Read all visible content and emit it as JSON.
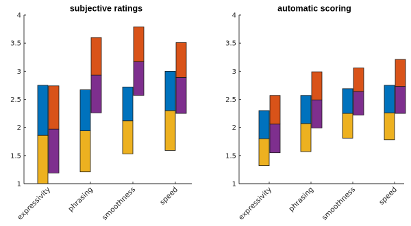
{
  "colors": {
    "blue": "#0072bd",
    "orange": "#d95319",
    "yellow": "#edb120",
    "purple": "#7e2f8e"
  },
  "chart_data": [
    {
      "type": "bar",
      "subtype": "floating-stacked",
      "title": "subjective ratings",
      "categories": [
        "expressivity",
        "phrasing",
        "smoothness",
        "speed"
      ],
      "ylim": [
        1,
        4
      ],
      "yticks": [
        "1",
        "1.5",
        "2",
        "2.5",
        "3",
        "3.5",
        "4"
      ],
      "grid": false,
      "legend": "none",
      "bars": [
        {
          "category": "expressivity",
          "bottom": 1.0,
          "mid": 1.86,
          "top": 2.75,
          "lower_color": "yellow",
          "upper_color": "blue"
        },
        {
          "category": "expressivity",
          "bottom": 1.19,
          "mid": 1.97,
          "top": 2.74,
          "lower_color": "purple",
          "upper_color": "orange"
        },
        {
          "category": "phrasing",
          "bottom": 1.21,
          "mid": 1.94,
          "top": 2.67,
          "lower_color": "yellow",
          "upper_color": "blue"
        },
        {
          "category": "phrasing",
          "bottom": 2.26,
          "mid": 2.93,
          "top": 3.6,
          "lower_color": "purple",
          "upper_color": "orange"
        },
        {
          "category": "smoothness",
          "bottom": 1.53,
          "mid": 2.12,
          "top": 2.72,
          "lower_color": "yellow",
          "upper_color": "blue"
        },
        {
          "category": "smoothness",
          "bottom": 2.57,
          "mid": 3.17,
          "top": 3.79,
          "lower_color": "purple",
          "upper_color": "orange"
        },
        {
          "category": "speed",
          "bottom": 1.59,
          "mid": 2.3,
          "top": 3.0,
          "lower_color": "yellow",
          "upper_color": "blue"
        },
        {
          "category": "speed",
          "bottom": 2.25,
          "mid": 2.89,
          "top": 3.51,
          "lower_color": "purple",
          "upper_color": "orange"
        }
      ]
    },
    {
      "type": "bar",
      "subtype": "floating-stacked",
      "title": "automatic scoring",
      "categories": [
        "expressivity",
        "phrasing",
        "smoothness",
        "speed"
      ],
      "ylim": [
        1,
        4
      ],
      "yticks": [
        "1",
        "1.5",
        "2",
        "2.5",
        "3",
        "3.5",
        "4"
      ],
      "grid": false,
      "legend": "none",
      "bars": [
        {
          "category": "expressivity",
          "bottom": 1.32,
          "mid": 1.8,
          "top": 2.3,
          "lower_color": "yellow",
          "upper_color": "blue"
        },
        {
          "category": "expressivity",
          "bottom": 1.55,
          "mid": 2.06,
          "top": 2.57,
          "lower_color": "purple",
          "upper_color": "orange"
        },
        {
          "category": "phrasing",
          "bottom": 1.57,
          "mid": 2.07,
          "top": 2.57,
          "lower_color": "yellow",
          "upper_color": "blue"
        },
        {
          "category": "phrasing",
          "bottom": 1.99,
          "mid": 2.49,
          "top": 2.99,
          "lower_color": "purple",
          "upper_color": "orange"
        },
        {
          "category": "smoothness",
          "bottom": 1.81,
          "mid": 2.25,
          "top": 2.69,
          "lower_color": "yellow",
          "upper_color": "blue"
        },
        {
          "category": "smoothness",
          "bottom": 2.22,
          "mid": 2.64,
          "top": 3.06,
          "lower_color": "purple",
          "upper_color": "orange"
        },
        {
          "category": "speed",
          "bottom": 1.78,
          "mid": 2.26,
          "top": 2.75,
          "lower_color": "yellow",
          "upper_color": "blue"
        },
        {
          "category": "speed",
          "bottom": 2.25,
          "mid": 2.73,
          "top": 3.21,
          "lower_color": "purple",
          "upper_color": "orange"
        }
      ]
    }
  ]
}
